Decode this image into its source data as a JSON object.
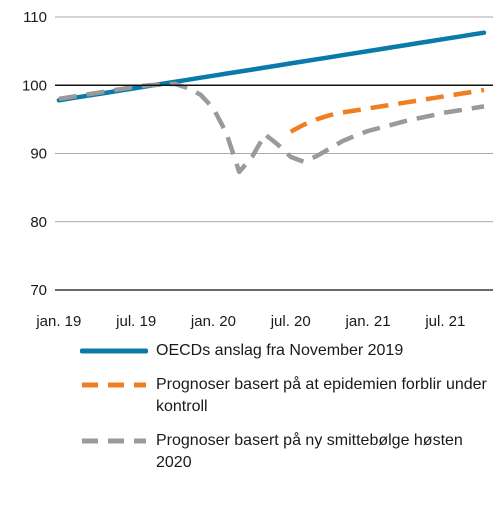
{
  "chart_data": {
    "type": "line",
    "x": [
      "2019-01",
      "2019-02",
      "2019-03",
      "2019-04",
      "2019-05",
      "2019-06",
      "2019-07",
      "2019-08",
      "2019-09",
      "2019-10",
      "2019-11",
      "2019-12",
      "2020-01",
      "2020-02",
      "2020-03",
      "2020-04",
      "2020-05",
      "2020-06",
      "2020-07",
      "2020-08",
      "2020-09",
      "2020-10",
      "2020-11",
      "2020-12",
      "2021-01",
      "2021-02",
      "2021-03",
      "2021-04",
      "2021-05",
      "2021-06",
      "2021-07",
      "2021-08",
      "2021-09",
      "2021-10"
    ],
    "x_tick_labels": [
      "jan. 19",
      "jul. 19",
      "jan. 20",
      "jul. 20",
      "jan. 21",
      "jul. 21"
    ],
    "y_ticks": [
      "70",
      "80",
      "90",
      "100",
      "110"
    ],
    "ylim": [
      70,
      110
    ],
    "reference_line": 100,
    "grid": "horizontal",
    "legend_position": "bottom",
    "series": [
      {
        "name": "OECDs anslag fra November 2019",
        "color": "#0a7ba8",
        "style": "solid",
        "values": [
          97.8,
          98.1,
          98.4,
          98.7,
          99.0,
          99.3,
          99.6,
          99.9,
          100.2,
          100.5,
          100.8,
          101.1,
          101.4,
          101.7,
          102.0,
          102.3,
          102.6,
          102.9,
          103.2,
          103.5,
          103.8,
          104.1,
          104.4,
          104.7,
          105.0,
          105.3,
          105.6,
          105.9,
          106.2,
          106.5,
          106.8,
          107.1,
          107.4,
          107.7
        ]
      },
      {
        "name": "Prognoser basert på at epidemien forblir under kontroll",
        "color": "#f07f22",
        "style": "dashed",
        "values": [
          null,
          null,
          null,
          null,
          null,
          null,
          null,
          null,
          null,
          null,
          null,
          null,
          null,
          null,
          null,
          null,
          null,
          null,
          93.2,
          94.2,
          95.0,
          95.6,
          96.0,
          96.3,
          96.6,
          96.9,
          97.2,
          97.5,
          97.8,
          98.1,
          98.4,
          98.7,
          99.0,
          99.3
        ]
      },
      {
        "name": "Prognoser basert på ny smittebølge høsten 2020",
        "color": "#9a9a9a",
        "style": "dashed",
        "values": [
          98.0,
          98.3,
          98.6,
          98.9,
          99.2,
          99.5,
          99.8,
          100.0,
          100.1,
          100.2,
          99.6,
          98.6,
          96.6,
          93.0,
          87.3,
          89.5,
          92.8,
          91.3,
          89.5,
          88.8,
          89.6,
          90.7,
          91.8,
          92.6,
          93.3,
          93.8,
          94.3,
          94.8,
          95.2,
          95.6,
          96.0,
          96.3,
          96.6,
          96.9
        ]
      }
    ]
  }
}
